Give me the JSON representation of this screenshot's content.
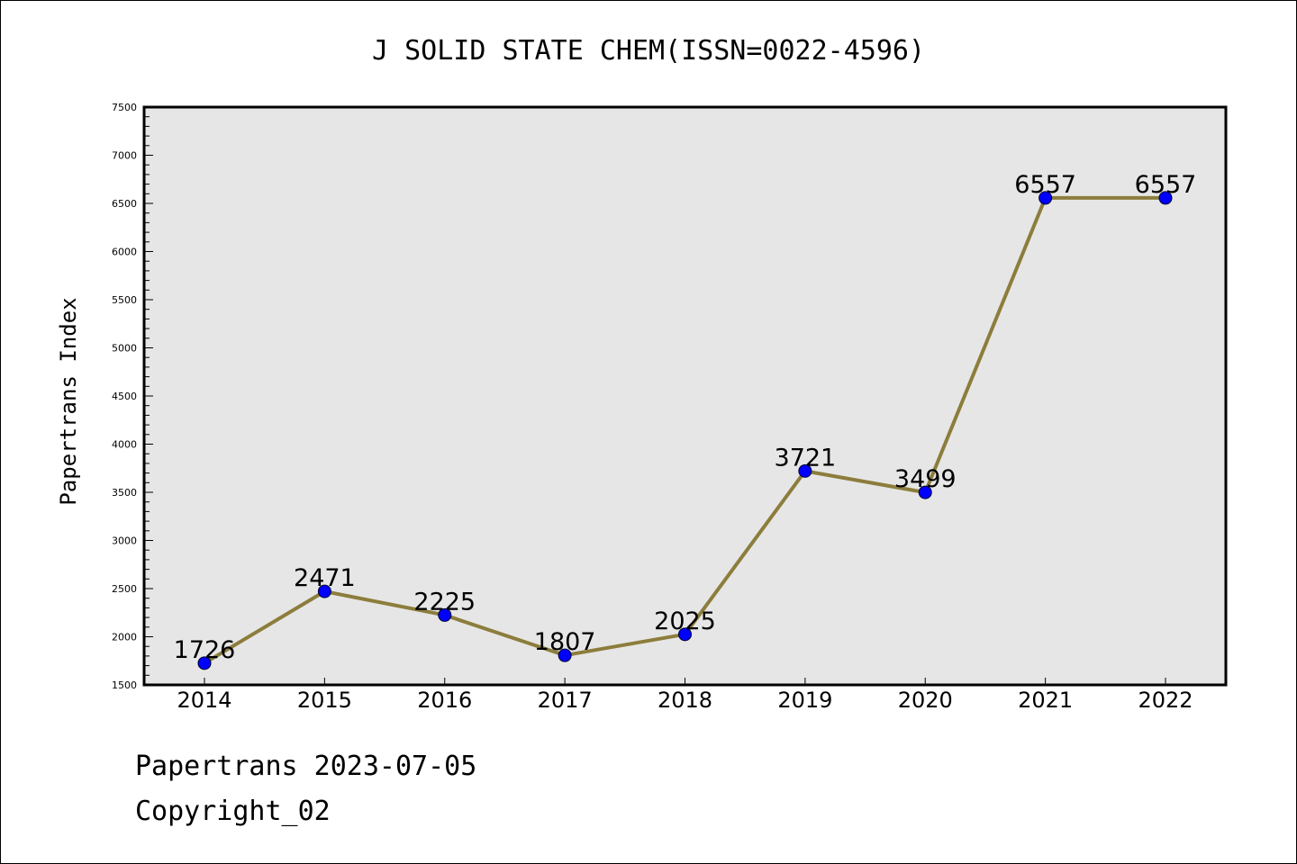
{
  "chart_data": {
    "type": "line",
    "title": "J SOLID STATE CHEM(ISSN=0022-4596)",
    "xlabel": "",
    "ylabel": "Papertrans Index",
    "x": [
      "2014",
      "2015",
      "2016",
      "2017",
      "2018",
      "2019",
      "2020",
      "2021",
      "2022"
    ],
    "series": [
      {
        "values": [
          1726,
          2471,
          2225,
          1807,
          2025,
          3721,
          3499,
          6557,
          6557
        ]
      }
    ],
    "ylim": [
      1500,
      7500
    ],
    "yticks": [
      1500,
      2000,
      2500,
      3000,
      3500,
      4000,
      4500,
      5000,
      5500,
      6000,
      6500,
      7000,
      7500
    ],
    "grid": false,
    "legend": "none",
    "colors": {
      "line": "#8c7d3c",
      "marker": "#0000ff",
      "plot_bg": "#e6e6e6"
    }
  },
  "footer": {
    "line1": "Papertrans 2023-07-05",
    "line2": "Copyright_02"
  }
}
